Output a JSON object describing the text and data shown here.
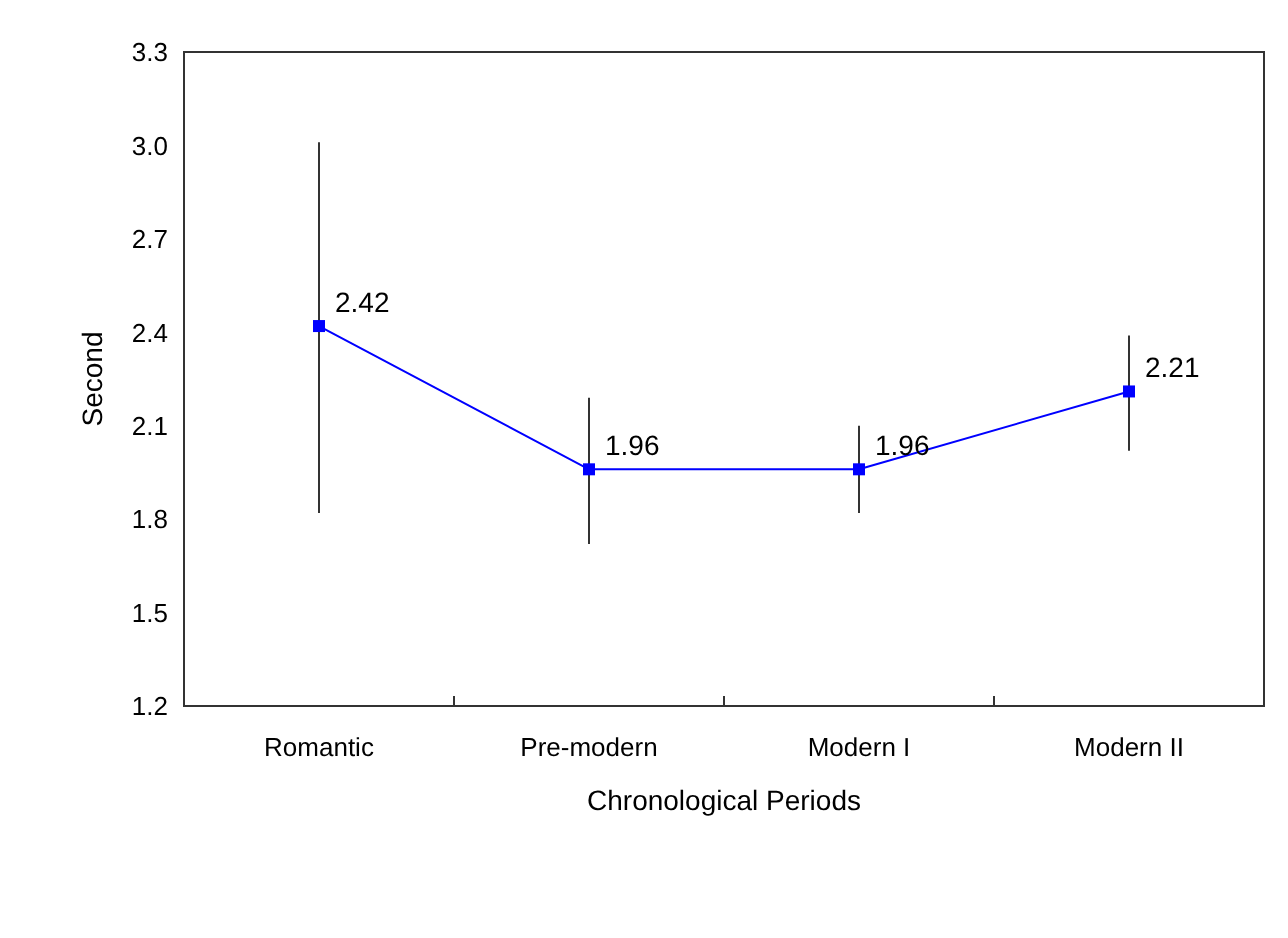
{
  "chart_data": {
    "type": "line",
    "xlabel": "Chronological Periods",
    "ylabel": "Second",
    "categories": [
      "Romantic",
      "Pre-modern",
      "Modern I",
      "Modern II"
    ],
    "values": [
      2.42,
      1.96,
      1.96,
      2.21
    ],
    "errors": [
      [
        1.82,
        3.01
      ],
      [
        1.72,
        2.19
      ],
      [
        1.82,
        2.1
      ],
      [
        2.02,
        2.39
      ]
    ],
    "color": "#0000ff",
    "marker": "square",
    "data_labels": true,
    "grid": false,
    "legend": false,
    "ylim": [
      1.2,
      3.3
    ],
    "yticks": [
      {
        "value": 1.2,
        "label": "1.2"
      },
      {
        "value": 1.5,
        "label": "1.5"
      },
      {
        "value": 1.8,
        "label": "1.8"
      },
      {
        "value": 2.1,
        "label": "2.1"
      },
      {
        "value": 2.4,
        "label": "2.4"
      },
      {
        "value": 2.7,
        "label": "2.7"
      },
      {
        "value": 3.0,
        "label": "3.0"
      },
      {
        "value": 3.3,
        "label": "3.3"
      }
    ]
  }
}
